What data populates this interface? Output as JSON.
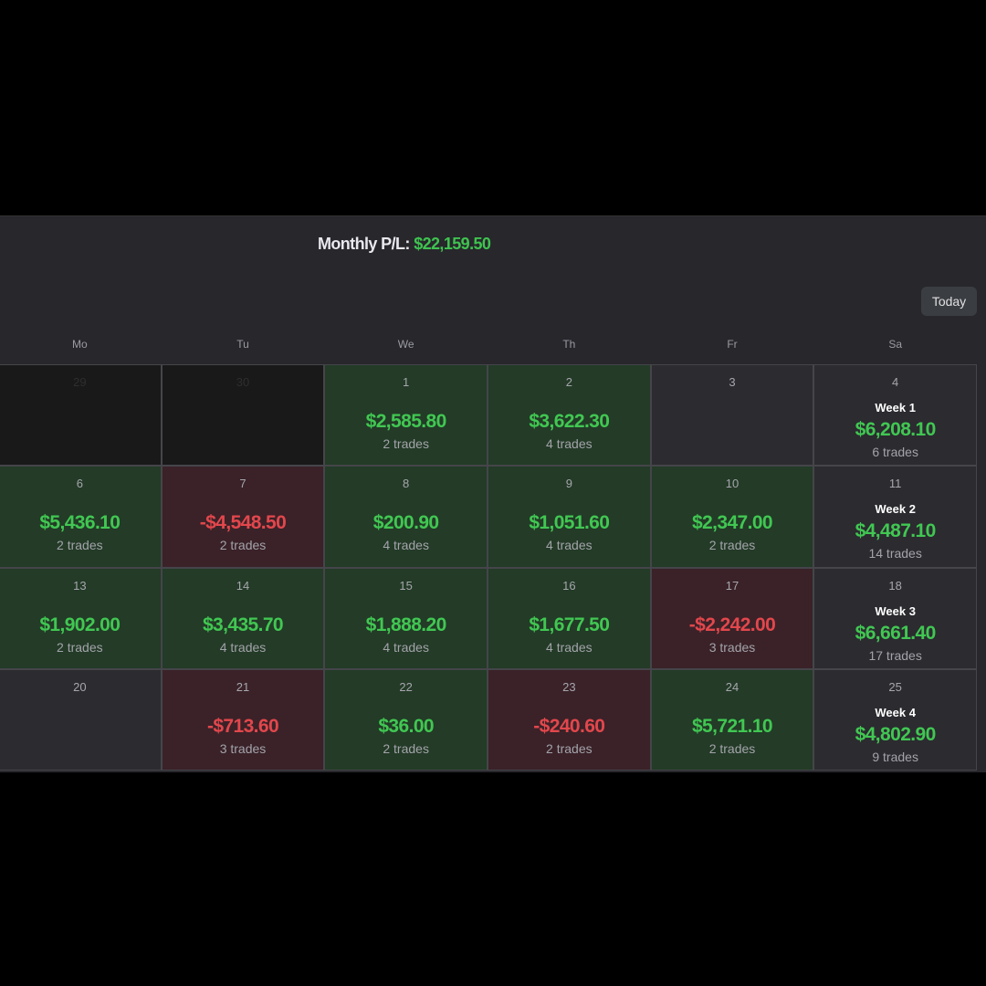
{
  "header": {
    "label": "Monthly P/L:",
    "value": "$22,159.50"
  },
  "today_label": "Today",
  "weekdays": [
    "Mo",
    "Tu",
    "We",
    "Th",
    "Fr",
    "Sa"
  ],
  "weeks": [
    {
      "days": [
        {
          "day": "29",
          "type": "other"
        },
        {
          "day": "30",
          "type": "other"
        },
        {
          "day": "1",
          "type": "green",
          "amount": "$2,585.80",
          "trades": "2 trades"
        },
        {
          "day": "2",
          "type": "green",
          "amount": "$3,622.30",
          "trades": "4 trades"
        },
        {
          "day": "3",
          "type": "empty"
        }
      ],
      "summary": {
        "day": "4",
        "label": "Week 1",
        "amount": "$6,208.10",
        "trades": "6 trades"
      }
    },
    {
      "days": [
        {
          "day": "6",
          "type": "green",
          "amount": "$5,436.10",
          "trades": "2 trades"
        },
        {
          "day": "7",
          "type": "red",
          "amount": "-$4,548.50",
          "trades": "2 trades"
        },
        {
          "day": "8",
          "type": "green",
          "amount": "$200.90",
          "trades": "4 trades"
        },
        {
          "day": "9",
          "type": "green",
          "amount": "$1,051.60",
          "trades": "4 trades"
        },
        {
          "day": "10",
          "type": "green",
          "amount": "$2,347.00",
          "trades": "2 trades"
        }
      ],
      "summary": {
        "day": "11",
        "label": "Week 2",
        "amount": "$4,487.10",
        "trades": "14 trades"
      }
    },
    {
      "days": [
        {
          "day": "13",
          "type": "green",
          "amount": "$1,902.00",
          "trades": "2 trades"
        },
        {
          "day": "14",
          "type": "green",
          "amount": "$3,435.70",
          "trades": "4 trades"
        },
        {
          "day": "15",
          "type": "green",
          "amount": "$1,888.20",
          "trades": "4 trades"
        },
        {
          "day": "16",
          "type": "green",
          "amount": "$1,677.50",
          "trades": "4 trades"
        },
        {
          "day": "17",
          "type": "red",
          "amount": "-$2,242.00",
          "trades": "3 trades"
        }
      ],
      "summary": {
        "day": "18",
        "label": "Week 3",
        "amount": "$6,661.40",
        "trades": "17 trades"
      }
    },
    {
      "days": [
        {
          "day": "20",
          "type": "empty"
        },
        {
          "day": "21",
          "type": "red",
          "amount": "-$713.60",
          "trades": "3 trades"
        },
        {
          "day": "22",
          "type": "green",
          "amount": "$36.00",
          "trades": "2 trades"
        },
        {
          "day": "23",
          "type": "red",
          "amount": "-$240.60",
          "trades": "2 trades"
        },
        {
          "day": "24",
          "type": "green",
          "amount": "$5,721.10",
          "trades": "2 trades"
        }
      ],
      "summary": {
        "day": "25",
        "label": "Week 4",
        "amount": "$4,802.90",
        "trades": "9 trades"
      }
    }
  ]
}
